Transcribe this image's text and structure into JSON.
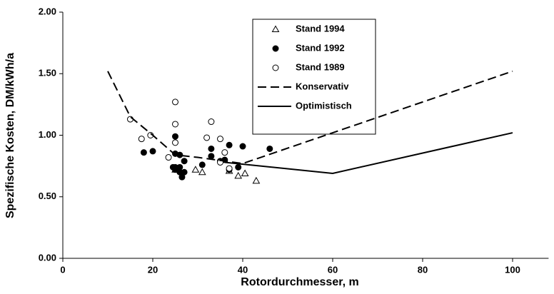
{
  "chart_data": {
    "type": "scatter",
    "x_label": "Rotordurchmesser, m",
    "y_label": "Spezifische Kosten, DM/kWh/a",
    "xlim": [
      0,
      108
    ],
    "ylim": [
      0,
      2
    ],
    "xticks": [
      0,
      20,
      40,
      60,
      80,
      100
    ],
    "yticks": [
      {
        "value": 0,
        "label": "0.00"
      },
      {
        "value": 0.5,
        "label": "0.50"
      },
      {
        "value": 1,
        "label": "1.00"
      },
      {
        "value": 1.5,
        "label": "1.50"
      },
      {
        "value": 2,
        "label": "2.00"
      }
    ],
    "series": [
      {
        "name": "Stand 1994",
        "color": "#000000",
        "marker": "triangle-open",
        "x": [
          25,
          29.5,
          31,
          37,
          39,
          40.5,
          43
        ],
        "values": [
          0.72,
          0.72,
          0.7,
          0.71,
          0.67,
          0.69,
          0.63
        ]
      },
      {
        "name": "Stand 1992",
        "color": "#000000",
        "marker": "circle-filled",
        "x": [
          18,
          20,
          25,
          25,
          25,
          25,
          26,
          26,
          26.5,
          27,
          27,
          31,
          33,
          33,
          35,
          36,
          37,
          37,
          39,
          40,
          46,
          24.5,
          26
        ],
        "values": [
          0.86,
          0.87,
          0.99,
          0.85,
          0.74,
          0.72,
          0.84,
          0.7,
          0.66,
          0.79,
          0.7,
          0.76,
          0.89,
          0.83,
          0.79,
          0.8,
          0.92,
          0.72,
          0.74,
          0.91,
          0.89,
          0.74,
          0.74
        ]
      },
      {
        "name": "Stand 1989",
        "color": "#000000",
        "marker": "circle-open",
        "x": [
          15,
          17.5,
          19.5,
          23.5,
          25,
          25,
          25,
          32,
          33,
          35,
          35,
          36,
          37
        ],
        "values": [
          1.13,
          0.97,
          1.0,
          0.82,
          1.27,
          1.09,
          0.94,
          0.98,
          1.11,
          0.97,
          0.78,
          0.86,
          0.73
        ]
      },
      {
        "name": "Konservativ",
        "color": "#000000",
        "line_style": "dashed",
        "x": [
          10,
          15,
          20,
          25,
          30,
          40,
          100
        ],
        "values": [
          1.52,
          1.15,
          1.0,
          0.84,
          0.82,
          0.77,
          1.52
        ]
      },
      {
        "name": "Optimistisch",
        "color": "#000000",
        "line_style": "solid",
        "x": [
          36,
          60,
          100
        ],
        "values": [
          0.78,
          0.69,
          1.02
        ]
      }
    ]
  }
}
